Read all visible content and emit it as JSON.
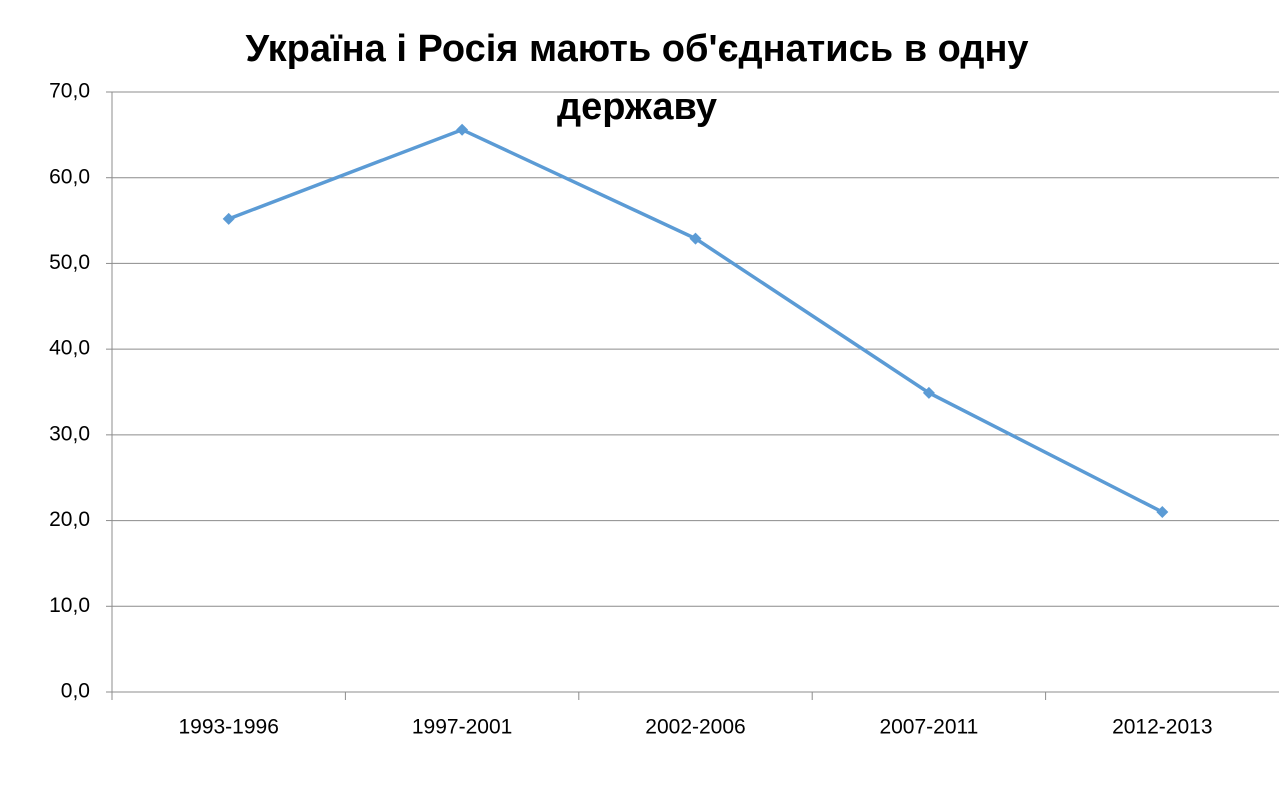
{
  "chart_data": {
    "type": "line",
    "title": "Україна і Росія мають об'єднатись в одну державу",
    "categories": [
      "1993-1996",
      "1997-2001",
      "2002-2006",
      "2007-2011",
      "2012-2013"
    ],
    "series": [
      {
        "color": "#5b9bd5",
        "values": [
          55.2,
          65.6,
          52.9,
          34.9,
          21.0
        ]
      }
    ],
    "ylim": [
      0,
      70
    ],
    "yticks": [
      {
        "value": 0,
        "label": "0,0"
      },
      {
        "value": 10,
        "label": "10,0"
      },
      {
        "value": 20,
        "label": "20,0"
      },
      {
        "value": 30,
        "label": "30,0"
      },
      {
        "value": 40,
        "label": "40,0"
      },
      {
        "value": 50,
        "label": "50,0"
      },
      {
        "value": 60,
        "label": "60,0"
      },
      {
        "value": 70,
        "label": "70,0"
      }
    ],
    "grid": true
  }
}
